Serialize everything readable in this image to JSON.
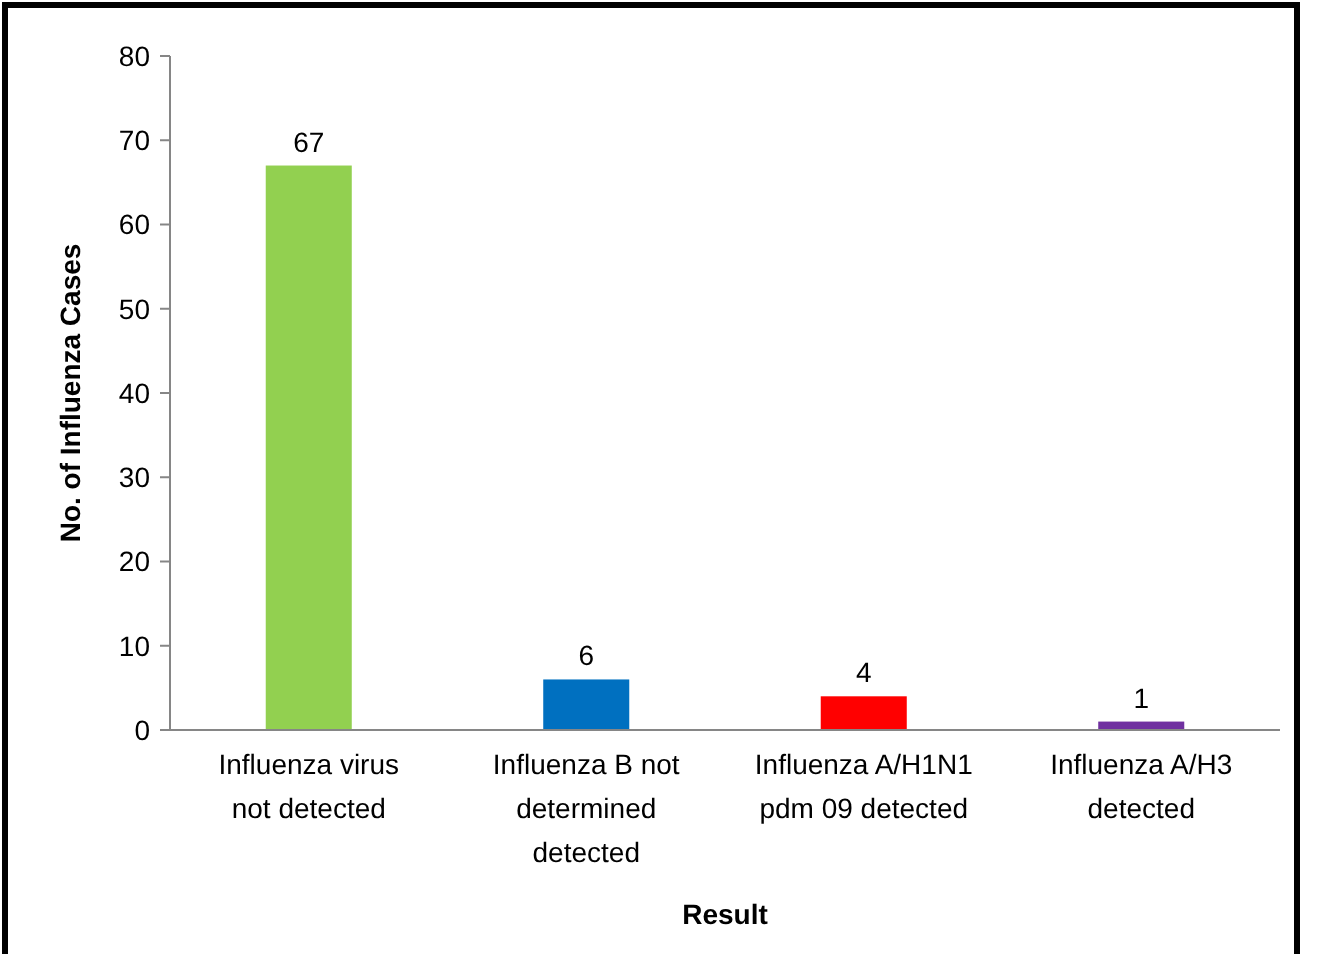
{
  "chart_data": {
    "type": "bar",
    "xlabel": "Result",
    "ylabel": "No. of Influenza Cases",
    "categories": [
      "Influenza virus not detected",
      "Influenza B not determined detected",
      "Influenza A/H1N1 pdm 09 detected",
      "Influenza A/H3 detected"
    ],
    "values": [
      67,
      6,
      4,
      1
    ],
    "colors": [
      "#92d050",
      "#0070c0",
      "#ff0000",
      "#7030a0"
    ],
    "ylim": [
      0,
      80
    ],
    "yticks": [
      0,
      10,
      20,
      30,
      40,
      50,
      60,
      70,
      80
    ],
    "data_labels": true
  }
}
